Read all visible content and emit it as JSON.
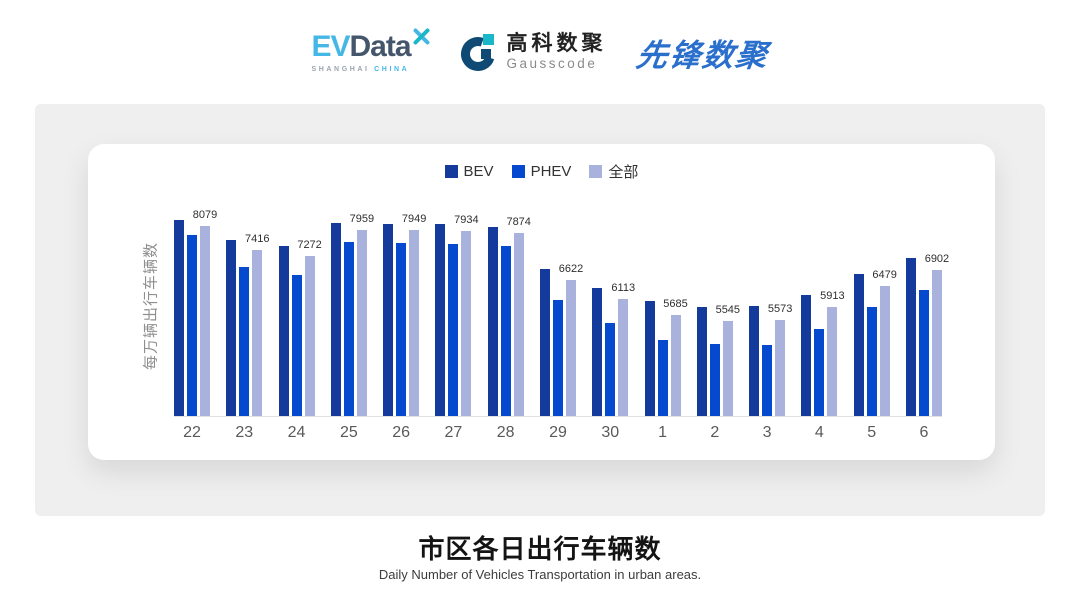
{
  "header": {
    "evdata": {
      "text_ev": "EV",
      "text_data": "Data",
      "sub_left": "SHANGHAI",
      "sub_right": "CHINA"
    },
    "gausscode": {
      "title_cn": "高科数聚",
      "title_en": "Gausscode"
    },
    "pioneer": {
      "title": "先锋数聚"
    }
  },
  "colors": {
    "evdata_blue": "#45b7e5",
    "evdata_dark": "#44566b",
    "gausscode_navy": "#0e4a73",
    "gausscode_teal": "#19b7c9",
    "pioneer_blue": "#2a6fcc",
    "panel_gray": "#efefef",
    "bev": "#143a9c",
    "phev": "#0549cf",
    "all": "#a9b2dc"
  },
  "chart_data": {
    "type": "bar",
    "title": "市区各日出行车辆数",
    "subtitle": "Daily Number of Vehicles Transportation in urban areas.",
    "ylabel": "每万辆出行车辆数",
    "xlabel": "",
    "categories": [
      "22",
      "23",
      "24",
      "25",
      "26",
      "27",
      "28",
      "29",
      "30",
      "1",
      "2",
      "3",
      "4",
      "5",
      "6"
    ],
    "series": [
      {
        "name": "BEV",
        "color": "#143a9c",
        "values": [
          8220,
          7680,
          7540,
          8150,
          8130,
          8130,
          8040,
          6930,
          6420,
          6060,
          5900,
          5920,
          6220,
          6790,
          7210
        ]
      },
      {
        "name": "PHEV",
        "color": "#0549cf",
        "values": [
          7830,
          6970,
          6760,
          7630,
          7610,
          7590,
          7530,
          6080,
          5490,
          5020,
          4920,
          4900,
          5330,
          5910,
          6360
        ]
      },
      {
        "name": "全部",
        "color": "#a9b2dc",
        "values": [
          8079,
          7416,
          7272,
          7959,
          7949,
          7934,
          7874,
          6622,
          6113,
          5685,
          5545,
          5573,
          5913,
          6479,
          6902
        ]
      }
    ],
    "label_series": "全部",
    "data_labels": [
      "8079",
      "7416",
      "7272",
      "7959",
      "7949",
      "7934",
      "7874",
      "6622",
      "6113",
      "5685",
      "5545",
      "5573",
      "5913",
      "6479",
      "6902"
    ],
    "ylim": [
      3000,
      9000
    ],
    "grid": false,
    "legend_position": "top-center"
  }
}
